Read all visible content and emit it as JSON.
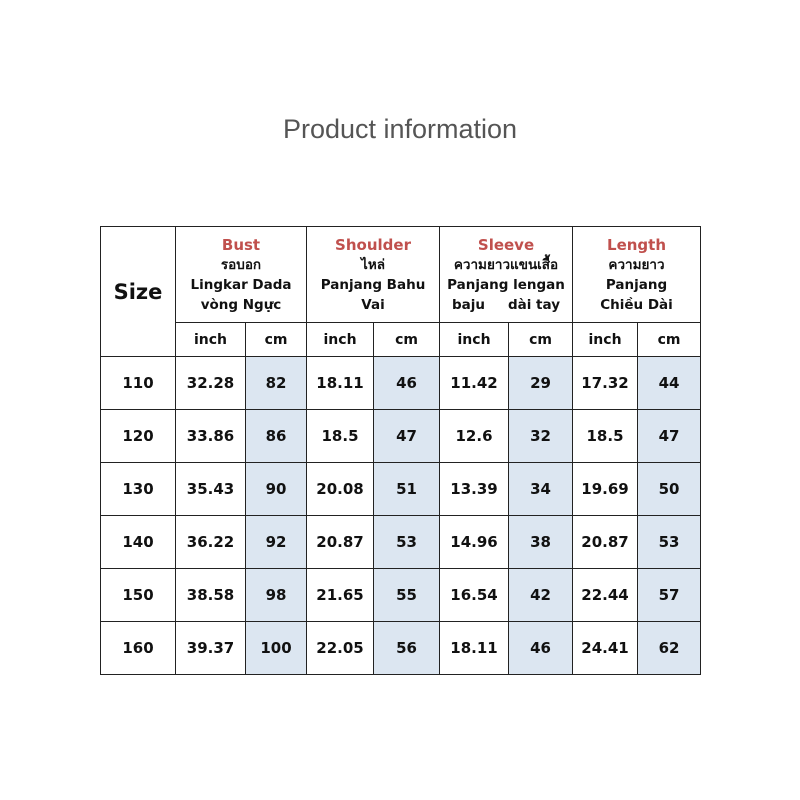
{
  "title": "Product information",
  "table": {
    "size_header": "Size",
    "columns": [
      {
        "name": "Bust",
        "lines": [
          "รอบอก",
          "Lingkar Dada",
          "vòng Ngực"
        ]
      },
      {
        "name": "Shoulder",
        "lines": [
          "ไหล่",
          "Panjang Bahu",
          "Vai"
        ]
      },
      {
        "name": "Sleeve",
        "lines": [
          "ความยาวแขนเสื้อ",
          "Panjang lengan",
          "baju",
          "dài tay"
        ]
      },
      {
        "name": "Length",
        "lines": [
          "ความยาว",
          "Panjang",
          "Chiều Dài"
        ]
      }
    ],
    "unit_inch": "inch",
    "unit_cm": "cm",
    "cm_highlight_color": "#dce6f1",
    "header_color": "#c0504d",
    "rows": [
      [
        "110",
        "32.28",
        "82",
        "18.11",
        "46",
        "11.42",
        "29",
        "17.32",
        "44"
      ],
      [
        "120",
        "33.86",
        "86",
        "18.5",
        "47",
        "12.6",
        "32",
        "18.5",
        "47"
      ],
      [
        "130",
        "35.43",
        "90",
        "20.08",
        "51",
        "13.39",
        "34",
        "19.69",
        "50"
      ],
      [
        "140",
        "36.22",
        "92",
        "20.87",
        "53",
        "14.96",
        "38",
        "20.87",
        "53"
      ],
      [
        "150",
        "38.58",
        "98",
        "21.65",
        "55",
        "16.54",
        "42",
        "22.44",
        "57"
      ],
      [
        "160",
        "39.37",
        "100",
        "22.05",
        "56",
        "18.11",
        "46",
        "24.41",
        "62"
      ]
    ]
  }
}
